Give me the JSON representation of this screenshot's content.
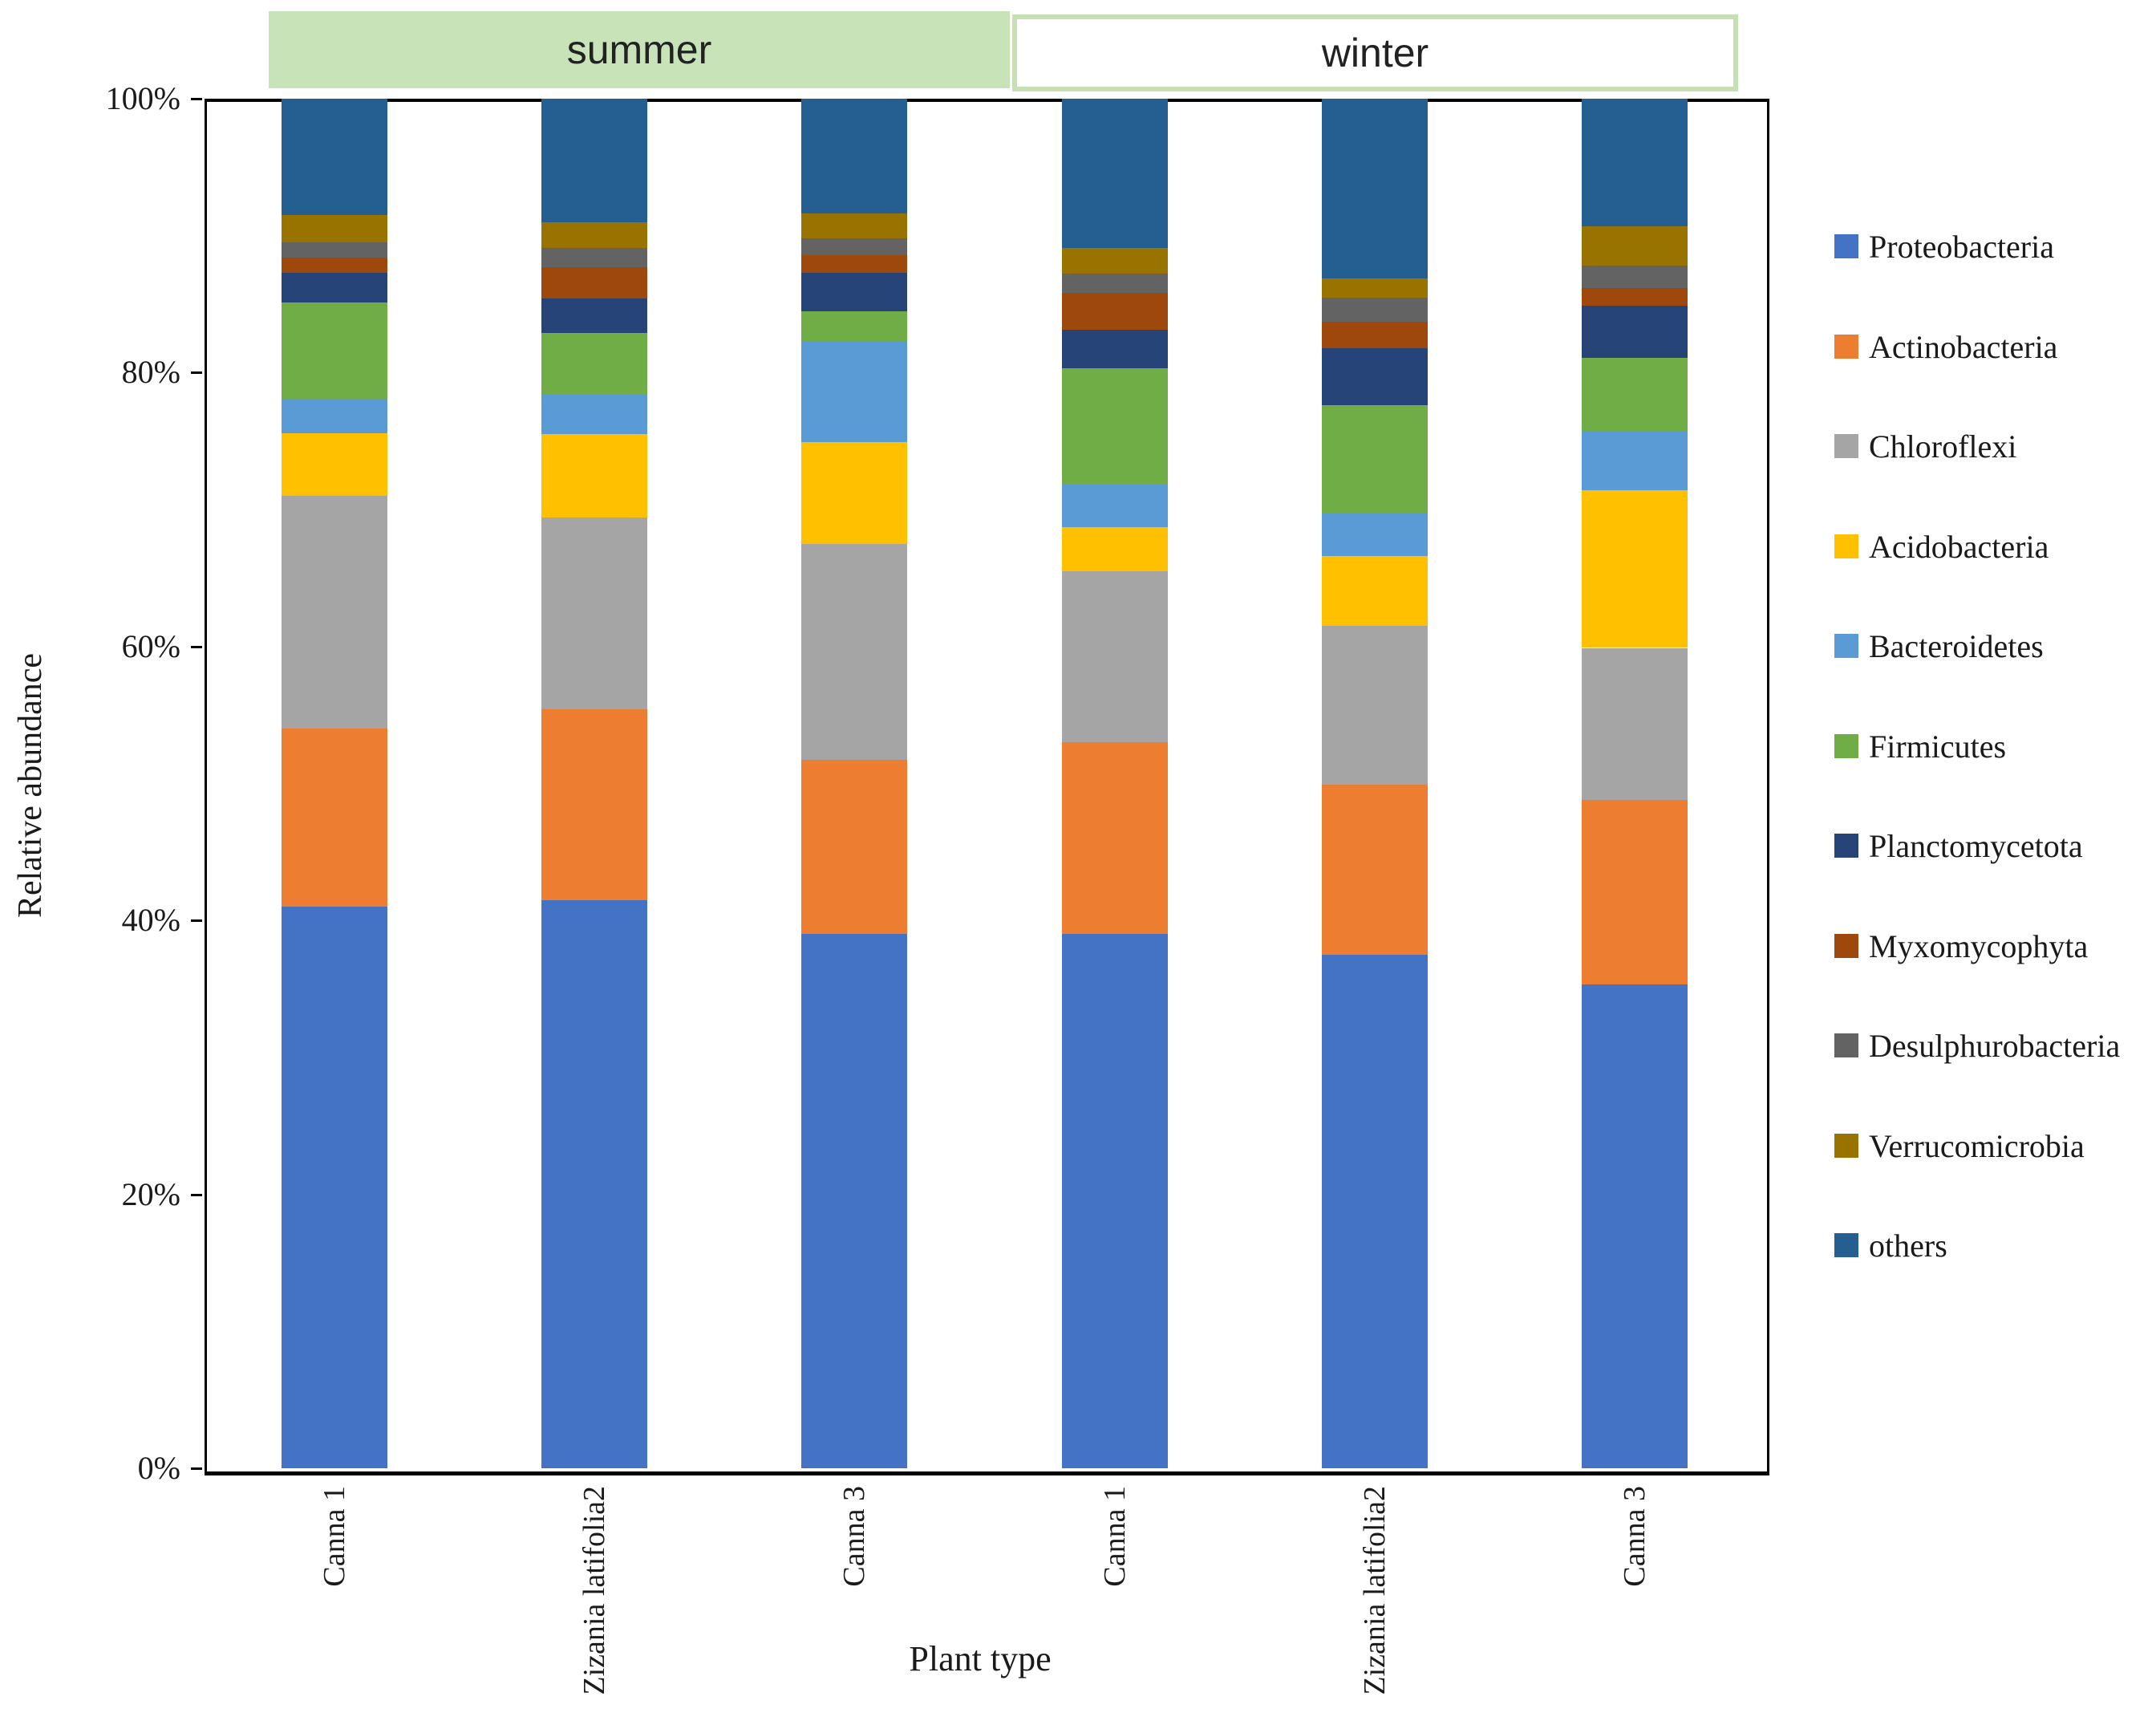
{
  "figure": {
    "y_axis_title": "Relative abundance",
    "x_axis_title": "Plant type",
    "group_bands": [
      {
        "label": "summer",
        "style": "filled"
      },
      {
        "label": "winter",
        "style": "outlined"
      }
    ],
    "band_fill_color": "#c9e3b8",
    "band_border_color": "#c6e0b4"
  },
  "chart_data": {
    "type": "bar",
    "stacked": true,
    "title": "",
    "xlabel": "Plant type",
    "ylabel": "Relative abundance",
    "ylim": [
      0,
      100
    ],
    "yticks": [
      "0%",
      "20%",
      "40%",
      "60%",
      "80%",
      "100%"
    ],
    "grid": false,
    "legend_position": "right",
    "categories": [
      "Canna 1",
      "Zizania latifolia2",
      "Canna 3",
      "Canna 1",
      "Zizania latifolia2",
      "Canna 3"
    ],
    "category_groups": [
      "summer",
      "summer",
      "summer",
      "winter",
      "winter",
      "winter"
    ],
    "units": "percent relative abundance",
    "series": [
      {
        "name": "Proteobacteria",
        "color": "#4472C4",
        "values": [
          41.0,
          41.5,
          39.0,
          39.0,
          37.5,
          35.3
        ]
      },
      {
        "name": "Actinobacteria",
        "color": "#ED7D31",
        "values": [
          13.0,
          13.9,
          12.7,
          14.0,
          12.4,
          13.5
        ]
      },
      {
        "name": "Chloroflexi",
        "color": "#A5A5A5",
        "values": [
          17.0,
          14.0,
          15.8,
          12.5,
          11.6,
          11.1
        ]
      },
      {
        "name": "Acidobacteria",
        "color": "#FFC000",
        "values": [
          4.6,
          6.1,
          7.4,
          3.2,
          5.1,
          11.5
        ]
      },
      {
        "name": "Bacteroidetes",
        "color": "#5B9BD5",
        "values": [
          2.5,
          2.9,
          7.4,
          3.1,
          3.2,
          4.3
        ]
      },
      {
        "name": "Firmicutes",
        "color": "#70AD47",
        "values": [
          7.0,
          4.5,
          2.2,
          8.5,
          7.8,
          5.4
        ]
      },
      {
        "name": "Planctomycetota",
        "color": "#264478",
        "values": [
          2.2,
          2.5,
          2.8,
          2.8,
          4.2,
          3.8
        ]
      },
      {
        "name": "Myxomycophyta",
        "color": "#9E480E",
        "values": [
          1.1,
          2.3,
          1.3,
          2.7,
          1.9,
          1.3
        ]
      },
      {
        "name": "Desulphurobacteria",
        "color": "#636363",
        "values": [
          1.1,
          1.4,
          1.2,
          1.4,
          1.8,
          1.6
        ]
      },
      {
        "name": "Verrucomicrobia",
        "color": "#997300",
        "values": [
          2.0,
          1.9,
          1.8,
          1.9,
          1.4,
          2.9
        ]
      },
      {
        "name": "others",
        "color": "#255E91",
        "values": [
          8.5,
          9.0,
          8.4,
          10.9,
          13.1,
          9.3
        ]
      }
    ]
  }
}
